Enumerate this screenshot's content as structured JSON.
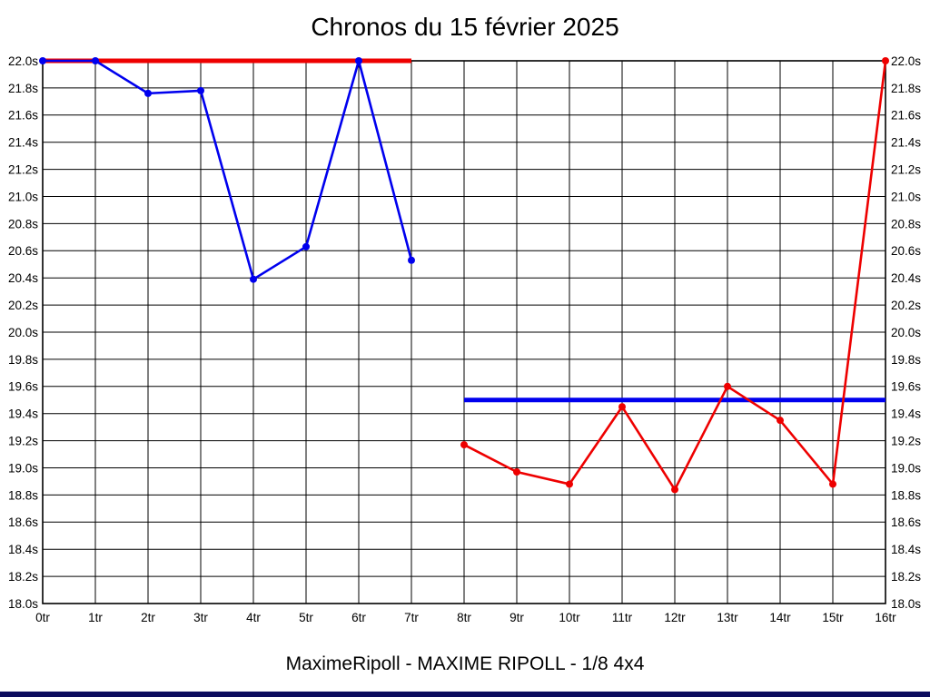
{
  "window": {
    "bottom_bar_color": "#0c0c5e",
    "background_color": "#ffffff"
  },
  "chart_data": {
    "type": "line",
    "title": "Chronos du 15 février 2025",
    "caption": "MaximeRipoll - MAXIME RIPOLL - 1/8 4x4",
    "xlabel": "",
    "ylabel": "",
    "xlim": [
      0,
      16
    ],
    "ylim": [
      18.0,
      22.0
    ],
    "grid": "on",
    "grid_color": "#000000",
    "x_ticks": [
      {
        "v": 0,
        "label": "0tr"
      },
      {
        "v": 1,
        "label": "1tr"
      },
      {
        "v": 2,
        "label": "2tr"
      },
      {
        "v": 3,
        "label": "3tr"
      },
      {
        "v": 4,
        "label": "4tr"
      },
      {
        "v": 5,
        "label": "5tr"
      },
      {
        "v": 6,
        "label": "6tr"
      },
      {
        "v": 7,
        "label": "7tr"
      },
      {
        "v": 8,
        "label": "8tr"
      },
      {
        "v": 9,
        "label": "9tr"
      },
      {
        "v": 10,
        "label": "10tr"
      },
      {
        "v": 11,
        "label": "11tr"
      },
      {
        "v": 12,
        "label": "12tr"
      },
      {
        "v": 13,
        "label": "13tr"
      },
      {
        "v": 14,
        "label": "14tr"
      },
      {
        "v": 15,
        "label": "15tr"
      },
      {
        "v": 16,
        "label": "16tr"
      }
    ],
    "y_ticks": [
      {
        "v": 22.0,
        "label": "22.0s"
      },
      {
        "v": 21.8,
        "label": "21.8s"
      },
      {
        "v": 21.6,
        "label": "21.6s"
      },
      {
        "v": 21.4,
        "label": "21.4s"
      },
      {
        "v": 21.2,
        "label": "21.2s"
      },
      {
        "v": 21.0,
        "label": "21.0s"
      },
      {
        "v": 20.8,
        "label": "20.8s"
      },
      {
        "v": 20.6,
        "label": "20.6s"
      },
      {
        "v": 20.4,
        "label": "20.4s"
      },
      {
        "v": 20.2,
        "label": "20.2s"
      },
      {
        "v": 20.0,
        "label": "20.0s"
      },
      {
        "v": 19.8,
        "label": "19.8s"
      },
      {
        "v": 19.6,
        "label": "19.6s"
      },
      {
        "v": 19.4,
        "label": "19.4s"
      },
      {
        "v": 19.2,
        "label": "19.2s"
      },
      {
        "v": 19.0,
        "label": "19.0s"
      },
      {
        "v": 18.8,
        "label": "18.8s"
      },
      {
        "v": 18.6,
        "label": "18.6s"
      },
      {
        "v": 18.4,
        "label": "18.4s"
      },
      {
        "v": 18.2,
        "label": "18.2s"
      },
      {
        "v": 18.0,
        "label": "18.0s"
      }
    ],
    "series": [
      {
        "name": "series-blue-run1",
        "color": "#0000ee",
        "x": [
          0,
          1,
          2,
          3,
          4,
          5,
          6,
          7
        ],
        "values": [
          22.0,
          22.0,
          21.76,
          21.78,
          20.39,
          20.63,
          22.0,
          20.53
        ]
      },
      {
        "name": "series-red-run2",
        "color": "#ee0000",
        "x": [
          8,
          9,
          10,
          11,
          12,
          13,
          14,
          15,
          16
        ],
        "values": [
          19.17,
          18.97,
          18.88,
          19.45,
          18.84,
          19.6,
          19.35,
          18.88,
          22.0
        ]
      }
    ],
    "reference_lines": [
      {
        "name": "ref-red-run1-max",
        "color": "#ee0000",
        "y": 22.0,
        "x_start": 0,
        "x_end": 7
      },
      {
        "name": "ref-blue-run2-max",
        "color": "#0000ee",
        "y": 19.5,
        "x_start": 8,
        "x_end": 16
      }
    ],
    "legend": "none"
  }
}
